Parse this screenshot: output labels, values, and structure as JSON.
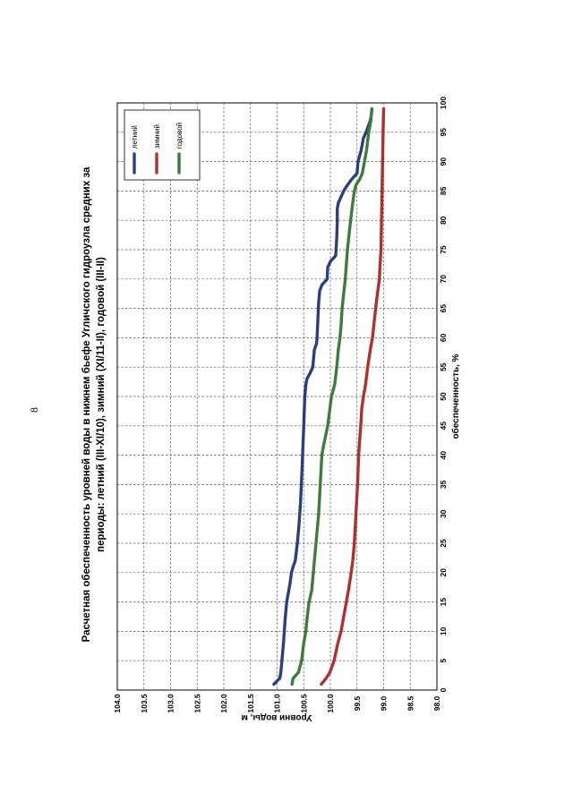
{
  "page_number": "8",
  "chart_data": {
    "type": "line",
    "title_line1": "Расчетная обеспеченность уровней воды в нижнем бьефе Угличского гидроузла средних за",
    "title_line2": "периоды: летний (III-XI/10),  зимний (XI/11-II), годовой (III-II)",
    "xlabel": "обеспеченность, %",
    "ylabel": "Уровни воды, м",
    "xlim": [
      0,
      100
    ],
    "ylim": [
      98.0,
      104.0
    ],
    "x_ticks": [
      "0",
      "5",
      "10",
      "15",
      "20",
      "25",
      "30",
      "35",
      "40",
      "45",
      "50",
      "55",
      "60",
      "65",
      "70",
      "75",
      "80",
      "85",
      "90",
      "95",
      "100"
    ],
    "y_ticks": [
      "98.0",
      "98.5",
      "99.0",
      "99.5",
      "100.0",
      "100.5",
      "101.0",
      "101.5",
      "102.0",
      "102.5",
      "103.0",
      "103.5",
      "104.0"
    ],
    "grid": true,
    "legend_position": "top-right",
    "series": [
      {
        "name": "летний",
        "color": "#2a3f82",
        "x": [
          1,
          2,
          3,
          5,
          8,
          12,
          15,
          17,
          18,
          20,
          21,
          22,
          25,
          28,
          32,
          38,
          45,
          50,
          52,
          53,
          54,
          55,
          58,
          59,
          60,
          62,
          64,
          66,
          68,
          69,
          70,
          72,
          73,
          74,
          77,
          80,
          82,
          83,
          84,
          85,
          86,
          87,
          88,
          90,
          92,
          94,
          95,
          96,
          97,
          98,
          99
        ],
        "values": [
          101.06,
          100.95,
          100.93,
          100.91,
          100.88,
          100.85,
          100.82,
          100.78,
          100.76,
          100.73,
          100.7,
          100.66,
          100.62,
          100.59,
          100.56,
          100.53,
          100.5,
          100.48,
          100.46,
          100.44,
          100.38,
          100.33,
          100.3,
          100.26,
          100.25,
          100.24,
          100.23,
          100.22,
          100.2,
          100.16,
          100.06,
          100.05,
          100.0,
          99.9,
          99.88,
          99.87,
          99.87,
          99.85,
          99.8,
          99.75,
          99.68,
          99.6,
          99.5,
          99.48,
          99.42,
          99.38,
          99.33,
          99.29,
          99.25,
          99.23,
          99.22
        ]
      },
      {
        "name": "зимний",
        "color": "#b03030",
        "x": [
          1,
          2,
          3,
          5,
          8,
          10,
          12,
          15,
          17,
          20,
          22,
          25,
          30,
          35,
          40,
          45,
          48,
          50,
          52,
          55,
          58,
          60,
          65,
          68,
          70,
          72,
          75,
          80,
          85,
          90,
          95,
          99
        ],
        "values": [
          100.17,
          100.08,
          100.01,
          99.93,
          99.86,
          99.8,
          99.76,
          99.7,
          99.66,
          99.61,
          99.58,
          99.55,
          99.52,
          99.49,
          99.47,
          99.43,
          99.41,
          99.38,
          99.34,
          99.3,
          99.25,
          99.21,
          99.15,
          99.11,
          99.08,
          99.07,
          99.05,
          99.04,
          99.03,
          99.02,
          99.01,
          99.0
        ]
      },
      {
        "name": "годовой",
        "color": "#3e7c3e",
        "x": [
          1,
          2,
          3,
          5,
          8,
          10,
          12,
          15,
          17,
          20,
          22,
          25,
          30,
          35,
          40,
          42,
          45,
          50,
          52,
          55,
          58,
          60,
          62,
          65,
          70,
          75,
          80,
          83,
          85,
          86,
          87,
          88,
          90,
          92,
          95,
          96,
          97,
          98,
          99
        ],
        "values": [
          100.72,
          100.7,
          100.6,
          100.54,
          100.5,
          100.46,
          100.44,
          100.4,
          100.35,
          100.32,
          100.3,
          100.27,
          100.22,
          100.19,
          100.16,
          100.12,
          100.05,
          99.98,
          99.92,
          99.88,
          99.85,
          99.82,
          99.8,
          99.78,
          99.72,
          99.68,
          99.62,
          99.58,
          99.55,
          99.52,
          99.45,
          99.4,
          99.36,
          99.32,
          99.28,
          99.26,
          99.24,
          99.23,
          99.22
        ]
      }
    ]
  }
}
